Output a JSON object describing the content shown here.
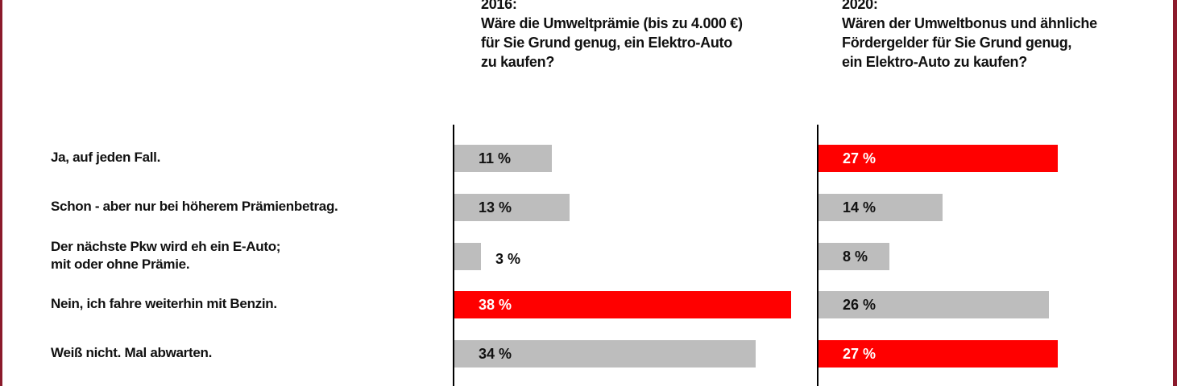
{
  "chart_data": {
    "type": "bar",
    "orientation": "horizontal",
    "categories": [
      "Ja, auf jeden Fall.",
      "Schon - aber nur bei höherem Prämienbetrag.",
      "Der nächste Pkw wird eh ein E-Auto;\nmit oder ohne Prämie.",
      "Nein, ich fahre weiterhin mit Benzin.",
      "Weiß nicht. Mal abwarten."
    ],
    "series": [
      {
        "name": "2016",
        "title": "2016:\nWäre die Umweltprämie (bis zu 4.000 €)\nfür Sie Grund genug, ein Elektro-Auto\nzu kaufen?",
        "values": [
          11,
          13,
          3,
          38,
          34
        ],
        "labels": [
          "11 %",
          "13 %",
          "3 %",
          "38 %",
          "34 %"
        ],
        "highlight": [
          false,
          false,
          false,
          true,
          false
        ]
      },
      {
        "name": "2020",
        "title": "2020:\nWären der Umweltbonus und ähnliche\nFördergelder für Sie Grund genug,\nein Elektro-Auto zu kaufen?",
        "values": [
          27,
          14,
          8,
          26,
          27
        ],
        "labels": [
          "27 %",
          "14 %",
          "8 %",
          "26 %",
          "27 %"
        ],
        "highlight": [
          true,
          false,
          false,
          false,
          true
        ]
      }
    ],
    "unit": "%",
    "colors": {
      "default": "#bdbdbd",
      "highlight": "#ff0000",
      "frame": "#8b1a2b"
    }
  }
}
